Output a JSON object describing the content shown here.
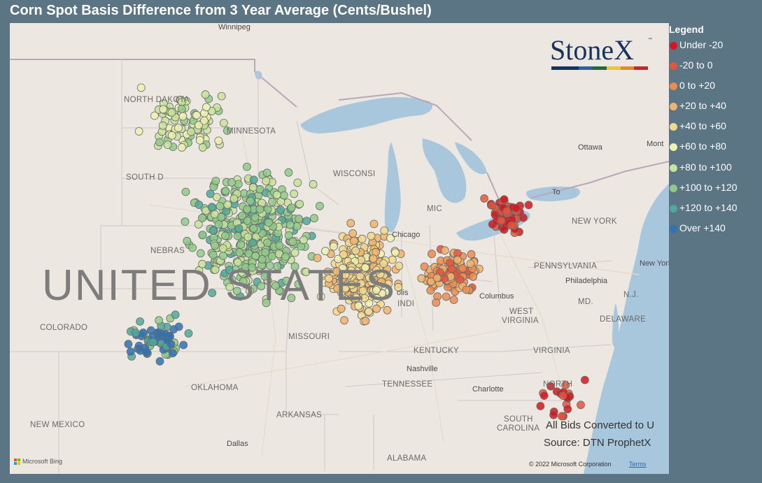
{
  "title": "Corn Spot Basis Difference from 3 Year Average (Cents/Bushel)",
  "legend": {
    "title": "Legend",
    "items": [
      {
        "label": "Under -20",
        "color": "#d4161f"
      },
      {
        "label": "-20 to 0",
        "color": "#e5553b"
      },
      {
        "label": "0 to +20",
        "color": "#ef8a4e"
      },
      {
        "label": "+20 to +40",
        "color": "#f2b36a"
      },
      {
        "label": "+40 to +60",
        "color": "#f5d98b"
      },
      {
        "label": "+60 to +80",
        "color": "#eef2b0"
      },
      {
        "label": "+80 to +100",
        "color": "#c8e39a"
      },
      {
        "label": "+100 to +120",
        "color": "#8fca88"
      },
      {
        "label": "+120 to +140",
        "color": "#4fa99b"
      },
      {
        "label": "Over +140",
        "color": "#2f72b5"
      }
    ]
  },
  "logo": {
    "text": "StoneX",
    "tm": "™",
    "bar_colors": [
      "#17325c",
      "#17325c",
      "#2d5ea8",
      "#1f6b3a",
      "#e8c53a",
      "#e08b2a",
      "#c1272d"
    ]
  },
  "notes": {
    "converted": "All Bids Converted to U",
    "source": "Source: DTN ProphetX"
  },
  "attribution": {
    "bing": "Microsoft Bing",
    "copyright": "© 2022 Microsoft Corporation",
    "terms": "Terms"
  },
  "map_labels": {
    "country": "UNITED STATES",
    "states": [
      {
        "id": "north-dakota",
        "text": "NORTH DAKOTA"
      },
      {
        "id": "south-dakota",
        "text": "SOUTH D"
      },
      {
        "id": "minnesota",
        "text": "MINNESOTA"
      },
      {
        "id": "wisconsin",
        "text": "WISCONSI"
      },
      {
        "id": "nebraska",
        "text": "NEBRAS"
      },
      {
        "id": "colorado",
        "text": "COLORADO"
      },
      {
        "id": "missouri",
        "text": "MISSOURI"
      },
      {
        "id": "oklahoma",
        "text": "OKLAHOMA"
      },
      {
        "id": "arkansas",
        "text": "ARKANSAS"
      },
      {
        "id": "new-mexico",
        "text": "NEW MEXICO"
      },
      {
        "id": "alabama",
        "text": "ALABAMA"
      },
      {
        "id": "tennessee",
        "text": "TENNESSEE"
      },
      {
        "id": "kentucky",
        "text": "KENTUCKY"
      },
      {
        "id": "west-virginia-1",
        "text": "WEST"
      },
      {
        "id": "west-virginia-2",
        "text": "VIRGINIA"
      },
      {
        "id": "virginia",
        "text": "VIRGINIA"
      },
      {
        "id": "north-carolina",
        "text": "NORTH"
      },
      {
        "id": "south-carolina-1",
        "text": "SOUTH"
      },
      {
        "id": "south-carolina-2",
        "text": "CAROLINA"
      },
      {
        "id": "pennsylvania",
        "text": "PENNSYLVANIA"
      },
      {
        "id": "new-york",
        "text": "NEW YORK"
      },
      {
        "id": "maryland",
        "text": "MD."
      },
      {
        "id": "delaware",
        "text": "DELAWARE"
      },
      {
        "id": "new-jersey",
        "text": "N.J."
      },
      {
        "id": "indiana",
        "text": "INDI"
      },
      {
        "id": "michigan",
        "text": "MIC"
      }
    ],
    "cities": [
      {
        "id": "winnipeg",
        "text": "Winnipeg"
      },
      {
        "id": "chicago",
        "text": "Chicago"
      },
      {
        "id": "columbus",
        "text": "Columbus"
      },
      {
        "id": "nashville",
        "text": "Nashville"
      },
      {
        "id": "charlotte",
        "text": "Charlotte"
      },
      {
        "id": "dallas",
        "text": "Dallas"
      },
      {
        "id": "philadelphia",
        "text": "Philadelphia"
      },
      {
        "id": "new-york-city",
        "text": "New York"
      },
      {
        "id": "ottawa",
        "text": "Ottawa"
      },
      {
        "id": "montreal",
        "text": "Mont"
      },
      {
        "id": "toronto",
        "text": "To"
      },
      {
        "id": "indianapolis",
        "text": "olis"
      }
    ]
  },
  "clusters": [
    {
      "region": "North Dakota",
      "category": [
        "+80 to +100",
        "+60 to +80",
        "+20 to +40",
        "+100 to +120"
      ]
    },
    {
      "region": "Minnesota / Iowa",
      "category": [
        "+100 to +120",
        "+80 to +100",
        "+120 to +140"
      ]
    },
    {
      "region": "Kansas / W. Nebraska",
      "category": [
        "Over +140",
        "+120 to +140",
        "+100 to +120"
      ]
    },
    {
      "region": "Illinois / Indiana",
      "category": [
        "+40 to +60",
        "+20 to +40",
        "+60 to +80"
      ]
    },
    {
      "region": "Ohio",
      "category": [
        "0 to +20",
        "+20 to +40",
        "-20 to 0"
      ]
    },
    {
      "region": "Michigan / Ontario",
      "category": [
        "Under -20",
        "-20 to 0"
      ]
    },
    {
      "region": "Carolinas",
      "category": [
        "Under -20",
        "-20 to 0"
      ]
    }
  ]
}
